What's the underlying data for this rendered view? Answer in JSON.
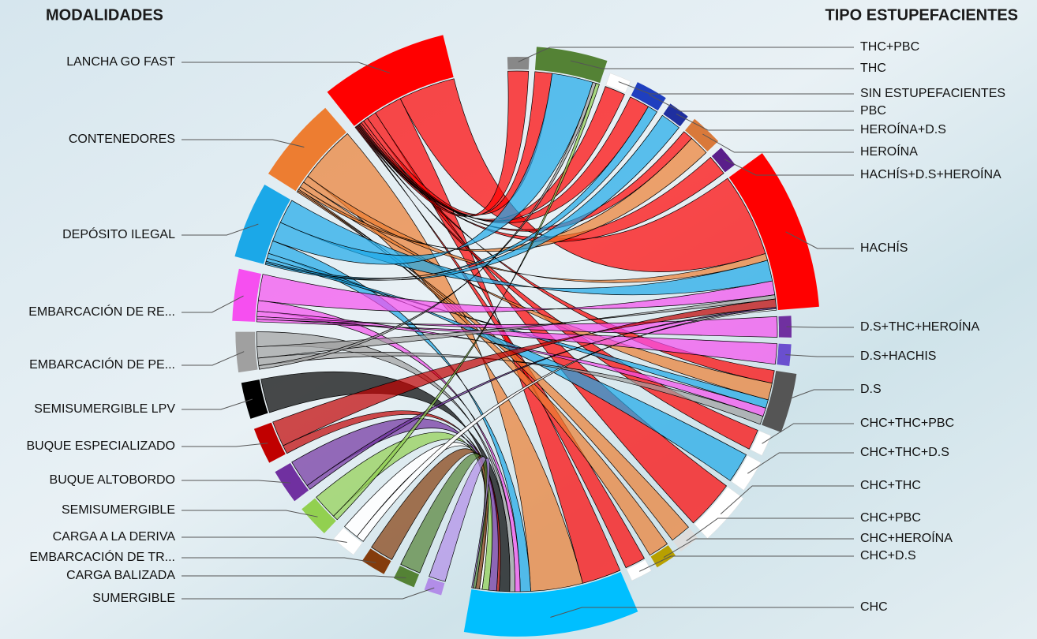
{
  "chart_data": {
    "type": "chord",
    "left_title": "MODALIDADES",
    "right_title": "TIPO ESTUPEFACIENTES",
    "sources": [
      {
        "name": "LANCHA GO FAST",
        "color": "#ff0000"
      },
      {
        "name": "CONTENEDORES",
        "color": "#ed7d31"
      },
      {
        "name": "DEPÓSITO ILEGAL",
        "color": "#1ba8e8"
      },
      {
        "name": "EMBARCACIÓN DE RE...",
        "color": "#f64ff0"
      },
      {
        "name": "EMBARCACIÓN DE PE...",
        "color": "#a0a0a0"
      },
      {
        "name": "SEMISUMERGIBLE LPV",
        "color": "#000000"
      },
      {
        "name": "BUQUE ESPECIALIZADO",
        "color": "#c00000"
      },
      {
        "name": "BUQUE ALTOBORDO",
        "color": "#7030a0"
      },
      {
        "name": "SEMISUMERGIBLE",
        "color": "#92d050"
      },
      {
        "name": "CARGA A LA DERIVA",
        "color": "#ffffff"
      },
      {
        "name": "EMBARCACIÓN DE TR...",
        "color": "#843c0c"
      },
      {
        "name": "CARGA BALIZADA",
        "color": "#548235"
      },
      {
        "name": "SUMERGIBLE",
        "color": "#b28de8"
      }
    ],
    "targets": [
      {
        "name": "THC+PBC",
        "color": "#888888"
      },
      {
        "name": "THC",
        "color": "#548235"
      },
      {
        "name": "SIN ESTUPEFACIENTES",
        "color": "#ffffff"
      },
      {
        "name": "PBC",
        "color": "#1f3fbf"
      },
      {
        "name": "HEROÍNA+D.S",
        "color": "#1f2f9f"
      },
      {
        "name": "HEROÍNA",
        "color": "#d9793a"
      },
      {
        "name": "HACHÍS+D.S+HEROÍNA",
        "color": "#5a1e8a"
      },
      {
        "name": "HACHÍS",
        "color": "#ff0000"
      },
      {
        "name": "D.S+THC+HEROÍNA",
        "color": "#7030a0"
      },
      {
        "name": "D.S+HACHIS",
        "color": "#6a4fcf"
      },
      {
        "name": "D.S",
        "color": "#555555"
      },
      {
        "name": "CHC+THC+PBC",
        "color": "#ffffff"
      },
      {
        "name": "CHC+THC+D.S",
        "color": "#ffffff"
      },
      {
        "name": "CHC+THC",
        "color": "#ffffff"
      },
      {
        "name": "CHC+PBC",
        "color": "#dddddd"
      },
      {
        "name": "CHC+HEROÍNA",
        "color": "#b8a000"
      },
      {
        "name": "CHC+D.S",
        "color": "#ffffff"
      },
      {
        "name": "CHC",
        "color": "#00bfff"
      }
    ],
    "links": [
      {
        "source": "LANCHA GO FAST",
        "target": "HACHÍS",
        "value": 60
      },
      {
        "source": "LANCHA GO FAST",
        "target": "CHC",
        "value": 30
      },
      {
        "source": "LANCHA GO FAST",
        "target": "CHC+THC",
        "value": 10
      },
      {
        "source": "LANCHA GO FAST",
        "target": "THC",
        "value": 5
      },
      {
        "source": "LANCHA GO FAST",
        "target": "D.S",
        "value": 3
      },
      {
        "source": "LANCHA GO FAST",
        "target": "PBC",
        "value": 2
      },
      {
        "source": "LANCHA GO FAST",
        "target": "HEROÍNA",
        "value": 1
      },
      {
        "source": "LANCHA GO FAST",
        "target": "SIN ESTUPEFACIENTES",
        "value": 1
      },
      {
        "source": "LANCHA GO FAST",
        "target": "THC+PBC",
        "value": 1
      },
      {
        "source": "LANCHA GO FAST",
        "target": "HACHÍS+D.S+HEROÍNA",
        "value": 1
      },
      {
        "source": "LANCHA GO FAST",
        "target": "CHC+THC+PBC",
        "value": 1
      },
      {
        "source": "LANCHA GO FAST",
        "target": "CHC+D.S",
        "value": 1
      },
      {
        "source": "CONTENEDORES",
        "target": "CHC",
        "value": 40
      },
      {
        "source": "CONTENEDORES",
        "target": "HACHÍS",
        "value": 5
      },
      {
        "source": "CONTENEDORES",
        "target": "D.S",
        "value": 4
      },
      {
        "source": "CONTENEDORES",
        "target": "HEROÍNA",
        "value": 2
      },
      {
        "source": "CONTENEDORES",
        "target": "CHC+PBC",
        "value": 1
      },
      {
        "source": "CONTENEDORES",
        "target": "CHC+HEROÍNA",
        "value": 1
      },
      {
        "source": "DEPÓSITO ILEGAL",
        "target": "HACHÍS",
        "value": 15
      },
      {
        "source": "DEPÓSITO ILEGAL",
        "target": "THC",
        "value": 12
      },
      {
        "source": "DEPÓSITO ILEGAL",
        "target": "CHC",
        "value": 8
      },
      {
        "source": "DEPÓSITO ILEGAL",
        "target": "CHC+THC+D.S",
        "value": 3
      },
      {
        "source": "DEPÓSITO ILEGAL",
        "target": "D.S",
        "value": 2
      },
      {
        "source": "DEPÓSITO ILEGAL",
        "target": "PBC",
        "value": 1
      },
      {
        "source": "DEPÓSITO ILEGAL",
        "target": "HEROÍNA+D.S",
        "value": 1
      },
      {
        "source": "EMBARCACIÓN DE RE...",
        "target": "HACHÍS",
        "value": 10
      },
      {
        "source": "EMBARCACIÓN DE RE...",
        "target": "CHC",
        "value": 4
      },
      {
        "source": "EMBARCACIÓN DE RE...",
        "target": "D.S",
        "value": 2
      },
      {
        "source": "EMBARCACIÓN DE RE...",
        "target": "D.S+THC+HEROÍNA",
        "value": 1
      },
      {
        "source": "EMBARCACIÓN DE RE...",
        "target": "D.S+HACHIS",
        "value": 1
      },
      {
        "source": "EMBARCACIÓN DE PE...",
        "target": "CHC",
        "value": 4
      },
      {
        "source": "EMBARCACIÓN DE PE...",
        "target": "HACHÍS",
        "value": 3
      },
      {
        "source": "EMBARCACIÓN DE PE...",
        "target": "D.S",
        "value": 2
      },
      {
        "source": "EMBARCACIÓN DE PE...",
        "target": "THC",
        "value": 1
      },
      {
        "source": "SEMISUMERGIBLE LPV",
        "target": "CHC",
        "value": 8
      },
      {
        "source": "BUQUE ESPECIALIZADO",
        "target": "HACHÍS",
        "value": 6
      },
      {
        "source": "BUQUE ESPECIALIZADO",
        "target": "CHC",
        "value": 2
      },
      {
        "source": "BUQUE ALTOBORDO",
        "target": "CHC",
        "value": 6
      },
      {
        "source": "BUQUE ALTOBORDO",
        "target": "HACHÍS",
        "value": 1
      },
      {
        "source": "SEMISUMERGIBLE",
        "target": "CHC",
        "value": 5
      },
      {
        "source": "SEMISUMERGIBLE",
        "target": "THC",
        "value": 1
      },
      {
        "source": "CARGA A LA DERIVA",
        "target": "CHC",
        "value": 2
      },
      {
        "source": "CARGA A LA DERIVA",
        "target": "HACHÍS",
        "value": 1
      },
      {
        "source": "EMBARCACIÓN DE TR...",
        "target": "CHC",
        "value": 3
      },
      {
        "source": "CARGA BALIZADA",
        "target": "CHC",
        "value": 2
      },
      {
        "source": "SUMERGIBLE",
        "target": "CHC",
        "value": 1
      }
    ]
  }
}
